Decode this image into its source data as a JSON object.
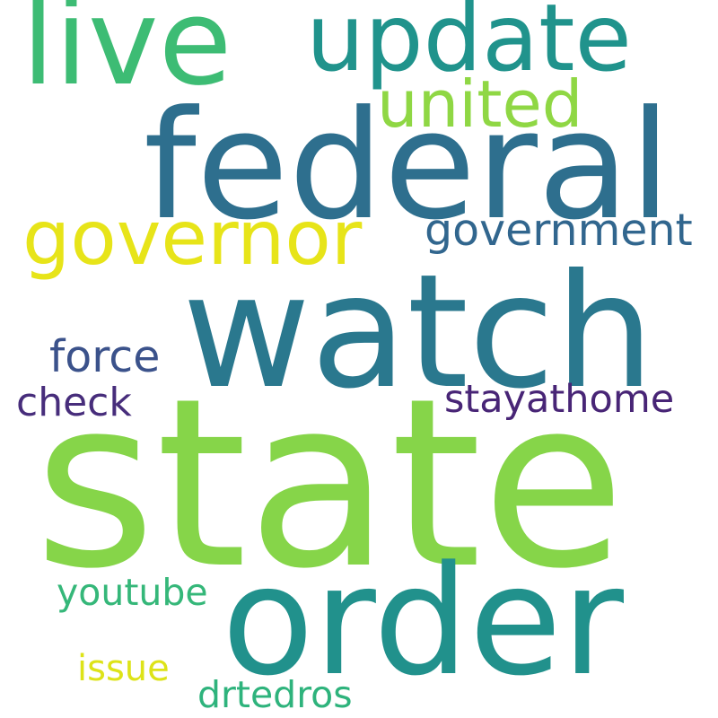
{
  "words": {
    "state": {
      "text": "state",
      "color": "#86d549"
    },
    "watch": {
      "text": "watch",
      "color": "#2a788e"
    },
    "federal": {
      "text": "federal",
      "color": "#2e6f8e"
    },
    "order": {
      "text": "order",
      "color": "#21918c"
    },
    "live": {
      "text": "live",
      "color": "#3dbc74"
    },
    "update": {
      "text": "update",
      "color": "#20938c"
    },
    "governor": {
      "text": "governor",
      "color": "#e7e419"
    },
    "united": {
      "text": "united",
      "color": "#8fd744"
    },
    "government": {
      "text": "government",
      "color": "#31668e"
    },
    "force": {
      "text": "force",
      "color": "#3b528b"
    },
    "check": {
      "text": "check",
      "color": "#472d7b"
    },
    "stayathome": {
      "text": "stayathome",
      "color": "#482576"
    },
    "youtube": {
      "text": "youtube",
      "color": "#35b779"
    },
    "issue": {
      "text": "issue",
      "color": "#dde318"
    },
    "drtedros": {
      "text": "drtedros",
      "color": "#2eb37c"
    }
  }
}
